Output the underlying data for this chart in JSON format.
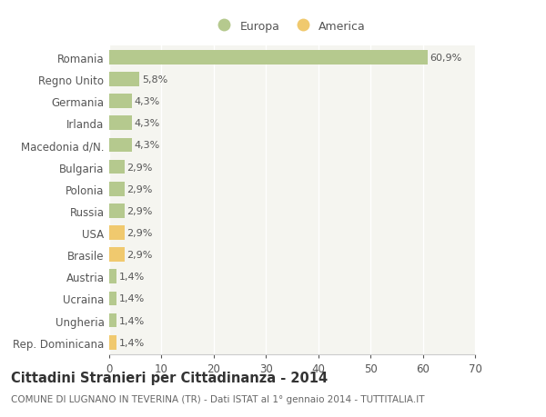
{
  "categories": [
    "Romania",
    "Regno Unito",
    "Germania",
    "Irlanda",
    "Macedonia d/N.",
    "Bulgaria",
    "Polonia",
    "Russia",
    "USA",
    "Brasile",
    "Austria",
    "Ucraina",
    "Ungheria",
    "Rep. Dominicana"
  ],
  "values": [
    60.9,
    5.8,
    4.3,
    4.3,
    4.3,
    2.9,
    2.9,
    2.9,
    2.9,
    2.9,
    1.4,
    1.4,
    1.4,
    1.4
  ],
  "colors": [
    "#b5c98e",
    "#b5c98e",
    "#b5c98e",
    "#b5c98e",
    "#b5c98e",
    "#b5c98e",
    "#b5c98e",
    "#b5c98e",
    "#f0c96e",
    "#f0c96e",
    "#b5c98e",
    "#b5c98e",
    "#b5c98e",
    "#f0c96e"
  ],
  "labels": [
    "60,9%",
    "5,8%",
    "4,3%",
    "4,3%",
    "4,3%",
    "2,9%",
    "2,9%",
    "2,9%",
    "2,9%",
    "2,9%",
    "1,4%",
    "1,4%",
    "1,4%",
    "1,4%"
  ],
  "xlim": [
    0,
    70
  ],
  "xticks": [
    0,
    10,
    20,
    30,
    40,
    50,
    60,
    70
  ],
  "legend_europa_color": "#b5c98e",
  "legend_america_color": "#f0c96e",
  "legend_europa_label": "Europa",
  "legend_america_label": "America",
  "title": "Cittadini Stranieri per Cittadinanza - 2014",
  "subtitle": "COMUNE DI LUGNANO IN TEVERINA (TR) - Dati ISTAT al 1° gennaio 2014 - TUTTITALIA.IT",
  "background_color": "#ffffff",
  "plot_bg_color": "#f5f5f0",
  "grid_color": "#ffffff",
  "bar_height": 0.65,
  "title_fontsize": 10.5,
  "subtitle_fontsize": 7.5,
  "tick_fontsize": 8.5,
  "label_fontsize": 8.0,
  "text_color": "#555555"
}
